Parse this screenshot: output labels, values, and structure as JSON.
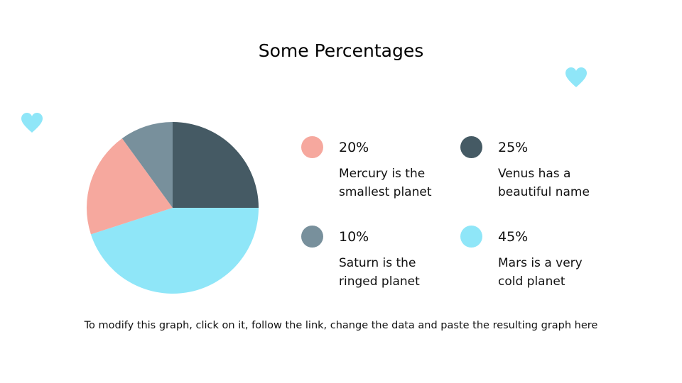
{
  "title": "Some Percentages",
  "footnote": "To modify this graph, click on it, follow the link, change the data and paste the resulting graph here",
  "decorations": {
    "heart_color": "#8fe6f8",
    "heart_icon": "heart-icon"
  },
  "chart_data": {
    "type": "pie",
    "categories": [
      "Mercury",
      "Venus",
      "Saturn",
      "Mars"
    ],
    "values": [
      20,
      25,
      10,
      45
    ],
    "colors": [
      "#f6a89e",
      "#455a64",
      "#78909c",
      "#8fe6f8"
    ]
  },
  "legend": [
    {
      "percent": "20%",
      "description": "Mercury is the smallest planet",
      "color": "#f6a89e"
    },
    {
      "percent": "25%",
      "description": "Venus has a beautiful name",
      "color": "#455a64"
    },
    {
      "percent": "10%",
      "description": "Saturn is the ringed planet",
      "color": "#78909c"
    },
    {
      "percent": "45%",
      "description": "Mars is a very cold planet",
      "color": "#8fe6f8"
    }
  ]
}
